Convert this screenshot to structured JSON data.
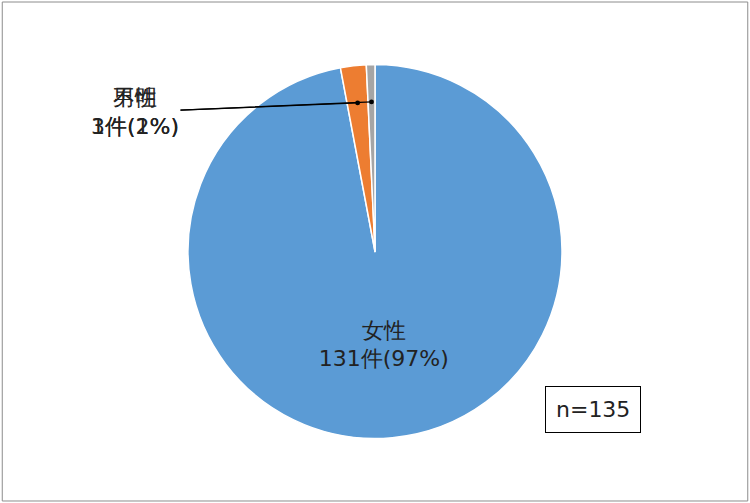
{
  "chart_data": {
    "type": "pie",
    "categories": [
      "女性",
      "男性",
      "不明"
    ],
    "values": [
      131,
      3,
      1
    ],
    "value_labels": [
      "131件(97%)",
      "3件(2%)",
      "1件(1%)"
    ],
    "colors": [
      "#5b9bd5",
      "#ed7d31",
      "#a5a5a5"
    ],
    "data_labels": true,
    "annotations": [
      "n=135"
    ]
  }
}
